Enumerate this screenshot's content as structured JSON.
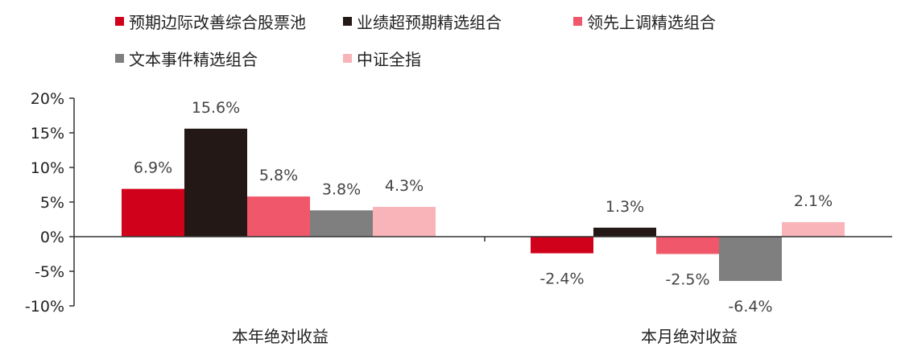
{
  "chart_data": {
    "type": "bar",
    "categories": [
      "本年绝对收益",
      "本月绝对收益"
    ],
    "series": [
      {
        "name": "预期边际改善综合股票池",
        "color": "#d0021b",
        "values": [
          6.9,
          -2.4
        ],
        "labels": [
          "6.9%",
          "-2.4%"
        ]
      },
      {
        "name": "业绩超预期精选组合",
        "color": "#231815",
        "values": [
          15.6,
          1.3
        ],
        "labels": [
          "15.6%",
          "1.3%"
        ]
      },
      {
        "name": "领先上调精选组合",
        "color": "#f0576a",
        "values": [
          5.8,
          -2.5
        ],
        "labels": [
          "5.8%",
          "-2.5%"
        ]
      },
      {
        "name": "文本事件精选组合",
        "color": "#7f7f7f",
        "values": [
          3.8,
          -6.4
        ],
        "labels": [
          "3.8%",
          "-6.4%"
        ]
      },
      {
        "name": "中证全指",
        "color": "#f8b4b9",
        "values": [
          4.3,
          2.1
        ],
        "labels": [
          "4.3%",
          "2.1%"
        ]
      }
    ],
    "yticks": [
      "20%",
      "15%",
      "10%",
      "5%",
      "0%",
      "-5%",
      "-10%"
    ],
    "ytick_values": [
      20,
      15,
      10,
      5,
      0,
      -5,
      -10
    ],
    "ylim": [
      -10,
      20
    ],
    "title": "",
    "xlabel": "",
    "ylabel": "",
    "grid": false,
    "legend_position": "top"
  }
}
